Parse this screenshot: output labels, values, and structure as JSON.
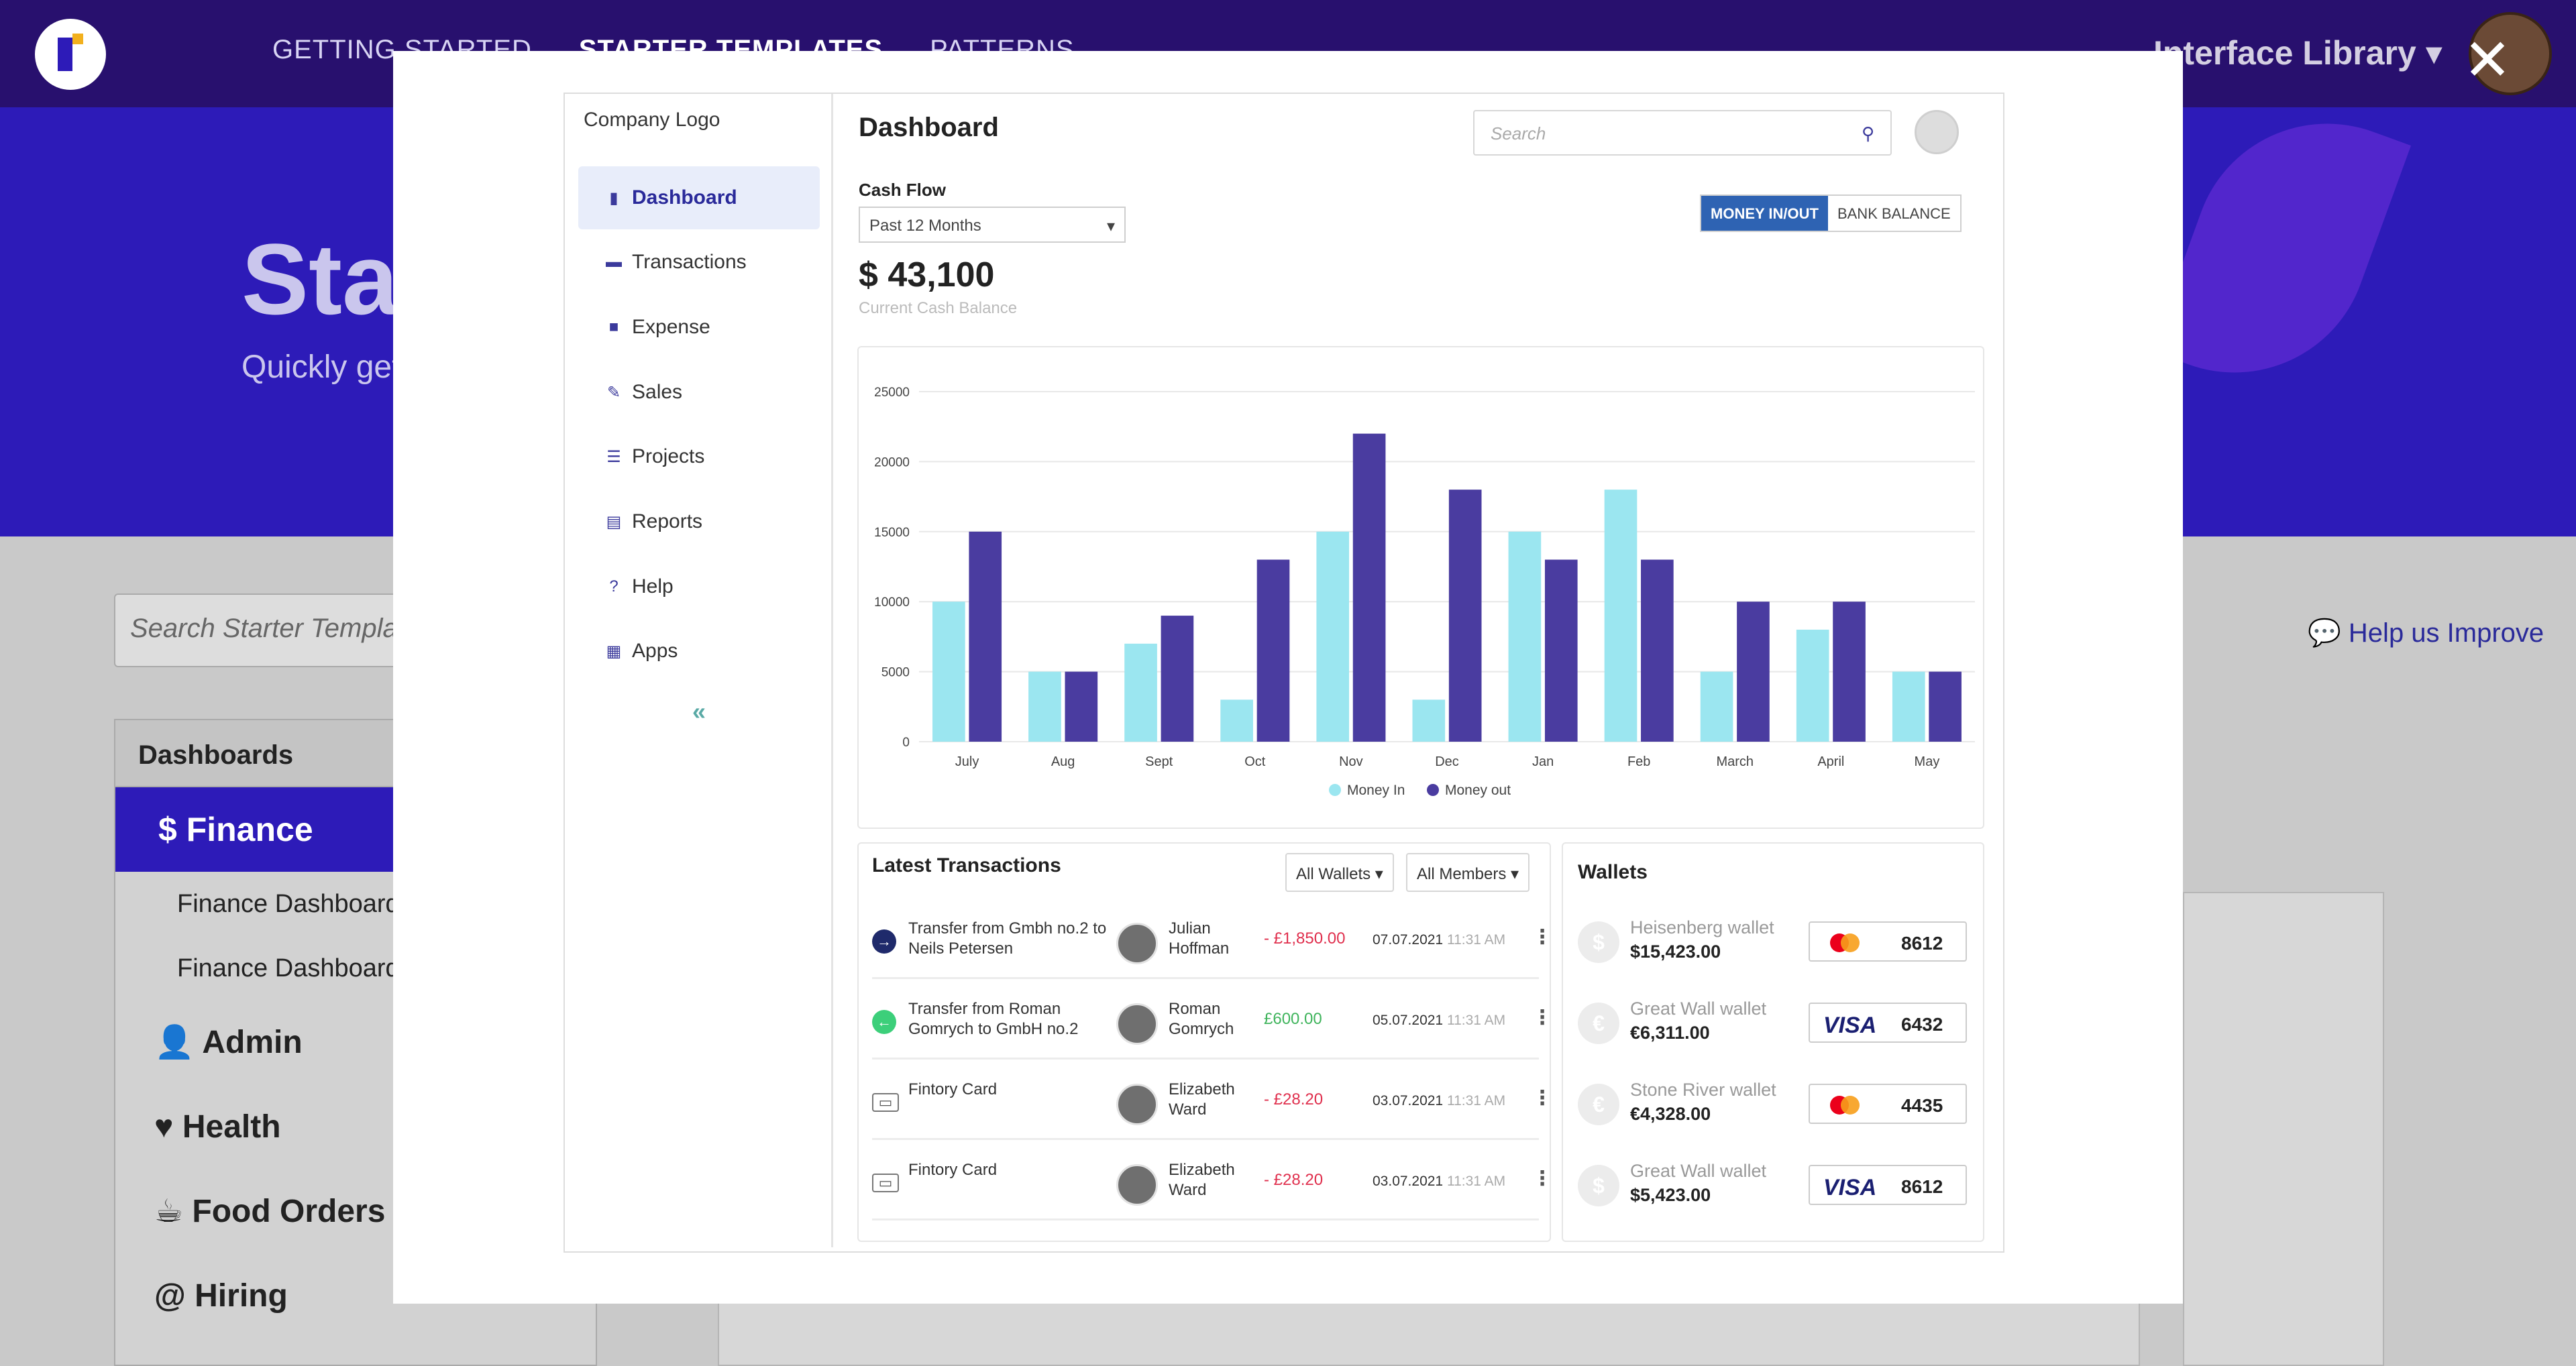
{
  "page": {
    "nav": [
      "GETTING STARTED",
      "STARTER TEMPLATES",
      "PATTERNS"
    ],
    "library": "Interface Library ▾",
    "hero_title": "Sta",
    "hero_sub": "Quickly get",
    "search_placeholder": "Search Starter Template",
    "help": "Help us Improve",
    "categories": {
      "head": "Dashboards",
      "finance": "Finance",
      "sub": [
        "Finance Dashboard",
        "Finance Dashboard"
      ],
      "items": [
        "Admin",
        "Health",
        "Food Orders",
        "Hiring"
      ]
    }
  },
  "dashboard": {
    "company": "Company Logo",
    "menu": [
      "Dashboard",
      "Transactions",
      "Expense",
      "Sales",
      "Projects",
      "Reports",
      "Help",
      "Apps"
    ],
    "title": "Dashboard",
    "search_placeholder": "Search",
    "cash_flow_label": "Cash Flow",
    "period": "Past 12 Months",
    "toggle": [
      "MONEY IN/OUT",
      "BANK BALANCE"
    ],
    "balance": "$ 43,100",
    "balance_label": "Current Cash Balance",
    "transactions_title": "Latest Transactions",
    "filters": [
      "All Wallets ▾",
      "All Members ▾"
    ],
    "transactions": [
      {
        "desc": "Transfer from Gmbh no.2 to Neils Petersen",
        "name": "Julian Hoffman",
        "amount": "- £1,850.00",
        "date": "07.07.2021",
        "time": "11:31 AM",
        "type": "out"
      },
      {
        "desc": "Transfer from Roman Gomrych to GmbH no.2",
        "name": "Roman Gomrych",
        "amount": "£600.00",
        "date": "05.07.2021",
        "time": "11:31 AM",
        "type": "in"
      },
      {
        "desc": "Fintory Card",
        "name": "Elizabeth Ward",
        "amount": "- £28.20",
        "date": "03.07.2021",
        "time": "11:31 AM",
        "type": "card"
      },
      {
        "desc": "Fintory Card",
        "name": "Elizabeth Ward",
        "amount": "- £28.20",
        "date": "03.07.2021",
        "time": "11:31 AM",
        "type": "card"
      }
    ],
    "wallets_title": "Wallets",
    "wallets": [
      {
        "name": "Heisenberg wallet",
        "amount": "$15,423.00",
        "symbol": "$",
        "brand": "mastercard",
        "last4": "8612"
      },
      {
        "name": "Great Wall wallet",
        "amount": "€6,311.00",
        "symbol": "€",
        "brand": "VISA",
        "last4": "6432"
      },
      {
        "name": "Stone River wallet",
        "amount": "€4,328.00",
        "symbol": "€",
        "brand": "mastercard",
        "last4": "4435"
      },
      {
        "name": "Great Wall wallet",
        "amount": "$5,423.00",
        "symbol": "$",
        "brand": "VISA",
        "last4": "8612"
      }
    ]
  },
  "chart_data": {
    "type": "bar",
    "categories": [
      "July",
      "Aug",
      "Sept",
      "Oct",
      "Nov",
      "Dec",
      "Jan",
      "Feb",
      "March",
      "April",
      "May"
    ],
    "series": [
      {
        "name": "Money In",
        "color": "#9be6f0",
        "values": [
          10000,
          5000,
          7000,
          3000,
          15000,
          3000,
          15000,
          18000,
          5000,
          8000,
          5000
        ]
      },
      {
        "name": "Money out",
        "color": "#4a3ca0",
        "values": [
          15000,
          5000,
          9000,
          13000,
          22000,
          18000,
          13000,
          13000,
          10000,
          10000,
          5000
        ]
      }
    ],
    "ylim": [
      0,
      25000
    ],
    "yticks": [
      0,
      5000,
      10000,
      15000,
      20000,
      25000
    ],
    "grid": true,
    "legend": "bottom"
  }
}
